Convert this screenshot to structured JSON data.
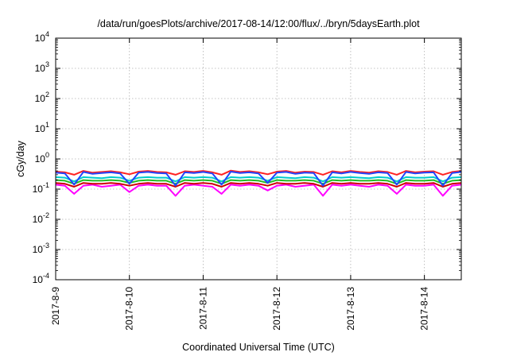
{
  "chart_data": {
    "type": "line",
    "title": "/data/run/goesPlots/archive/2017-08-14/12:00/flux/../bryn/5daysEarth.plot",
    "xlabel": "Coordinated Universal Time (UTC)",
    "ylabel": "cGy/day",
    "yscale": "log",
    "ylim": [
      0.0001,
      10000
    ],
    "xlim": [
      "2017-08-09 00:00",
      "2017-08-14 12:00"
    ],
    "x_ticks": [
      "2017-8-9",
      "2017-8-10",
      "2017-8-11",
      "2017-8-12",
      "2017-8-13",
      "2017-8-14"
    ],
    "y_ticks": [
      {
        "value": 0.0001,
        "base": "10",
        "exp": "-4"
      },
      {
        "value": 0.001,
        "base": "10",
        "exp": "-3"
      },
      {
        "value": 0.01,
        "base": "10",
        "exp": "-2"
      },
      {
        "value": 0.1,
        "base": "10",
        "exp": "-1"
      },
      {
        "value": 1,
        "base": "10",
        "exp": "0"
      },
      {
        "value": 10,
        "base": "10",
        "exp": "1"
      },
      {
        "value": 100,
        "base": "10",
        "exp": "2"
      },
      {
        "value": 1000,
        "base": "10",
        "exp": "3"
      },
      {
        "value": 10000,
        "base": "10",
        "exp": "4"
      }
    ],
    "grid": true,
    "legend": "none",
    "time_step_hours": 3,
    "series": [
      {
        "color": "#ff00ff",
        "values": [
          0.14,
          0.13,
          0.07,
          0.13,
          0.14,
          0.12,
          0.13,
          0.14,
          0.08,
          0.13,
          0.14,
          0.13,
          0.13,
          0.06,
          0.13,
          0.14,
          0.13,
          0.12,
          0.07,
          0.14,
          0.13,
          0.14,
          0.13,
          0.09,
          0.13,
          0.14,
          0.12,
          0.13,
          0.14,
          0.06,
          0.14,
          0.13,
          0.14,
          0.13,
          0.12,
          0.14,
          0.13,
          0.07,
          0.14,
          0.13,
          0.13,
          0.14,
          0.06,
          0.13,
          0.14
        ]
      },
      {
        "color": "#cc0000",
        "values": [
          0.16,
          0.15,
          0.12,
          0.16,
          0.15,
          0.15,
          0.16,
          0.15,
          0.13,
          0.15,
          0.16,
          0.15,
          0.15,
          0.12,
          0.16,
          0.15,
          0.16,
          0.15,
          0.12,
          0.16,
          0.15,
          0.16,
          0.15,
          0.13,
          0.16,
          0.15,
          0.15,
          0.16,
          0.15,
          0.12,
          0.16,
          0.15,
          0.16,
          0.15,
          0.15,
          0.16,
          0.15,
          0.12,
          0.16,
          0.15,
          0.15,
          0.16,
          0.12,
          0.15,
          0.16
        ]
      },
      {
        "color": "#22bb22",
        "values": [
          0.2,
          0.19,
          0.15,
          0.2,
          0.19,
          0.19,
          0.2,
          0.19,
          0.16,
          0.19,
          0.2,
          0.19,
          0.19,
          0.15,
          0.2,
          0.19,
          0.2,
          0.19,
          0.15,
          0.2,
          0.19,
          0.2,
          0.19,
          0.16,
          0.2,
          0.19,
          0.19,
          0.2,
          0.19,
          0.15,
          0.2,
          0.19,
          0.2,
          0.19,
          0.19,
          0.2,
          0.19,
          0.15,
          0.2,
          0.19,
          0.19,
          0.2,
          0.15,
          0.19,
          0.2
        ]
      },
      {
        "color": "#00cccc",
        "values": [
          0.25,
          0.24,
          0.18,
          0.25,
          0.24,
          0.23,
          0.25,
          0.24,
          0.19,
          0.24,
          0.25,
          0.24,
          0.24,
          0.18,
          0.25,
          0.24,
          0.25,
          0.24,
          0.18,
          0.25,
          0.24,
          0.25,
          0.24,
          0.19,
          0.25,
          0.24,
          0.23,
          0.25,
          0.24,
          0.18,
          0.25,
          0.24,
          0.25,
          0.24,
          0.23,
          0.25,
          0.24,
          0.18,
          0.25,
          0.24,
          0.24,
          0.25,
          0.18,
          0.24,
          0.25
        ]
      },
      {
        "color": "#ff2222",
        "values": [
          0.38,
          0.36,
          0.3,
          0.4,
          0.35,
          0.37,
          0.39,
          0.36,
          0.31,
          0.38,
          0.4,
          0.37,
          0.36,
          0.3,
          0.39,
          0.37,
          0.4,
          0.36,
          0.3,
          0.41,
          0.37,
          0.39,
          0.36,
          0.31,
          0.38,
          0.4,
          0.35,
          0.38,
          0.37,
          0.3,
          0.39,
          0.36,
          0.4,
          0.37,
          0.35,
          0.39,
          0.37,
          0.3,
          0.4,
          0.36,
          0.38,
          0.39,
          0.3,
          0.37,
          0.4
        ]
      },
      {
        "color": "#2244ff",
        "values": [
          0.35,
          0.33,
          0.14,
          0.37,
          0.32,
          0.34,
          0.36,
          0.33,
          0.15,
          0.35,
          0.37,
          0.34,
          0.33,
          0.13,
          0.36,
          0.34,
          0.37,
          0.33,
          0.14,
          0.38,
          0.34,
          0.36,
          0.33,
          0.16,
          0.35,
          0.37,
          0.32,
          0.35,
          0.34,
          0.13,
          0.36,
          0.33,
          0.37,
          0.34,
          0.32,
          0.36,
          0.34,
          0.14,
          0.37,
          0.33,
          0.35,
          0.36,
          0.13,
          0.34,
          0.37
        ]
      }
    ]
  }
}
